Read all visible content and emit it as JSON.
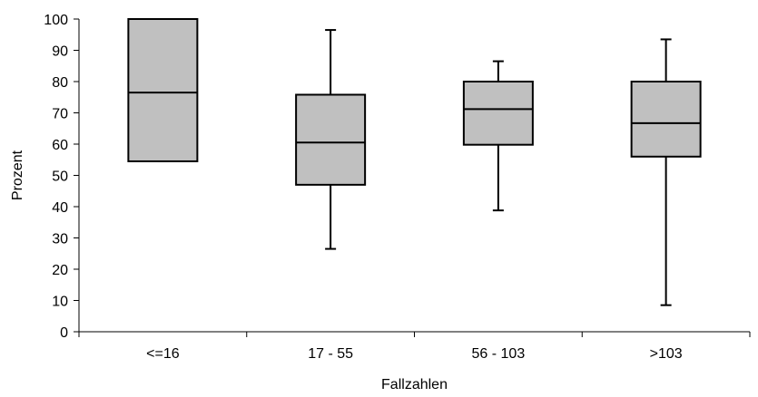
{
  "chart_data": {
    "type": "box",
    "title": "",
    "xlabel": "Fallzahlen",
    "ylabel": "Prozent",
    "ylim": [
      0,
      100
    ],
    "yticks": [
      "0",
      "10",
      "20",
      "30",
      "40",
      "50",
      "60",
      "70",
      "80",
      "90",
      "100"
    ],
    "categories": [
      "<=16",
      "17 - 55",
      "56 - 103",
      ">103"
    ],
    "boxes": [
      {
        "min": 54.5,
        "q1": 54.5,
        "median": 76.5,
        "q3": 100,
        "max": 100
      },
      {
        "min": 26.5,
        "q1": 47,
        "median": 60.5,
        "q3": 75.8,
        "max": 96.5
      },
      {
        "min": 38.8,
        "q1": 59.8,
        "median": 71.2,
        "q3": 80,
        "max": 86.5
      },
      {
        "min": 8.5,
        "q1": 56,
        "median": 66.7,
        "q3": 80,
        "max": 93.5
      }
    ],
    "box_color": "#c0c0c0",
    "grid": false,
    "legend": "none"
  }
}
